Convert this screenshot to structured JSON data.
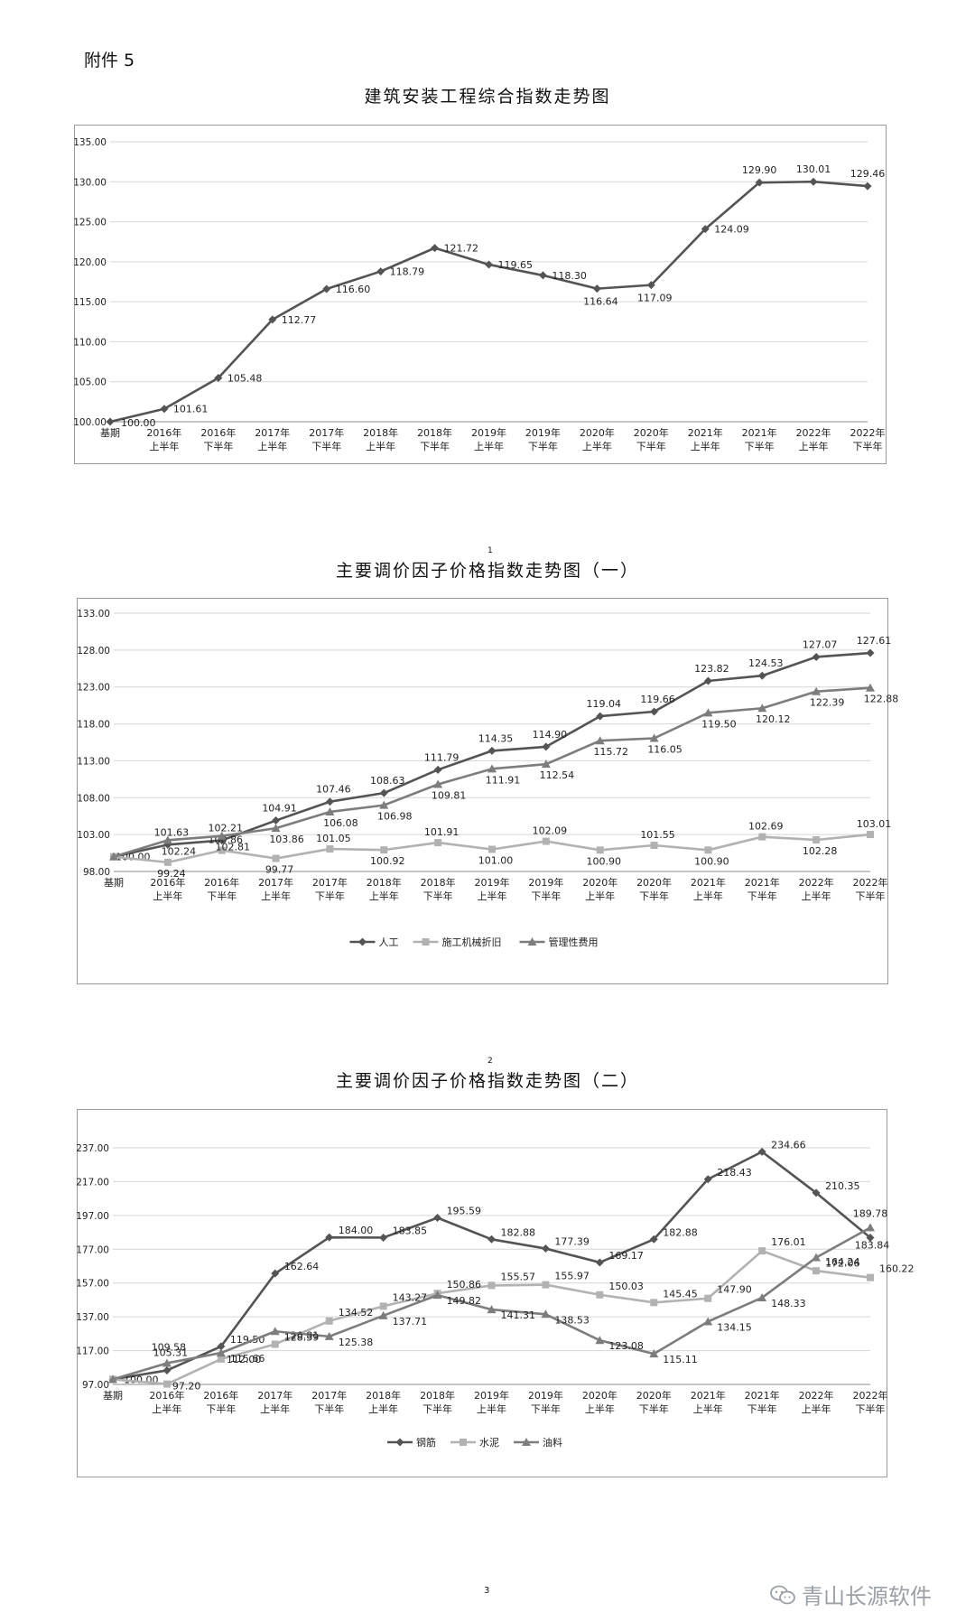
{
  "header": {
    "attachment": "附件 5"
  },
  "page_number": "3",
  "watermark": {
    "text": "青山长源软件",
    "icon": "wechat-icon"
  },
  "colors": {
    "dark": "#545454",
    "light": "#b2b2b2",
    "mid": "#7d7d7d",
    "grid": "#d6d6d6",
    "border": "#9a9a9a"
  },
  "chart_data": [
    {
      "type": "line",
      "title": "建筑安装工程综合指数走势图",
      "title_mark": "",
      "categories": [
        [
          "基期",
          ""
        ],
        [
          "2016年",
          "上半年"
        ],
        [
          "2016年",
          "下半年"
        ],
        [
          "2017年",
          "上半年"
        ],
        [
          "2017年",
          "下半年"
        ],
        [
          "2018年",
          "上半年"
        ],
        [
          "2018年",
          "下半年"
        ],
        [
          "2019年",
          "上半年"
        ],
        [
          "2019年",
          "下半年"
        ],
        [
          "2020年",
          "上半年"
        ],
        [
          "2020年",
          "下半年"
        ],
        [
          "2021年",
          "上半年"
        ],
        [
          "2021年",
          "下半年"
        ],
        [
          "2022年",
          "上半年"
        ],
        [
          "2022年",
          "下半年"
        ]
      ],
      "ylim": [
        100,
        135
      ],
      "yticks": [
        "100.00",
        "105.00",
        "110.00",
        "115.00",
        "120.00",
        "125.00",
        "130.00",
        "135.00"
      ],
      "grid": true,
      "legend": false,
      "series": [
        {
          "name": "",
          "marker": "diamond",
          "color": "#545454",
          "values": [
            100.0,
            101.61,
            105.48,
            112.77,
            116.6,
            118.79,
            121.72,
            119.65,
            118.3,
            116.64,
            117.09,
            124.09,
            129.9,
            130.01,
            129.46
          ],
          "labels": [
            "100.00",
            "101.61",
            "105.48",
            "112.77",
            "116.60",
            "118.79",
            "121.72",
            "119.65",
            "118.30",
            "116.64",
            "117.09",
            "124.09",
            "129.90",
            "130.01",
            "129.46"
          ]
        }
      ]
    },
    {
      "type": "line",
      "title": "主要调价因子价格指数走势图（一）",
      "title_mark": "1",
      "categories": [
        [
          "基期",
          ""
        ],
        [
          "2016年",
          "上半年"
        ],
        [
          "2016年",
          "下半年"
        ],
        [
          "2017年",
          "上半年"
        ],
        [
          "2017年",
          "下半年"
        ],
        [
          "2018年",
          "上半年"
        ],
        [
          "2018年",
          "下半年"
        ],
        [
          "2019年",
          "上半年"
        ],
        [
          "2019年",
          "下半年"
        ],
        [
          "2020年",
          "上半年"
        ],
        [
          "2020年",
          "下半年"
        ],
        [
          "2021年",
          "上半年"
        ],
        [
          "2021年",
          "下半年"
        ],
        [
          "2022年",
          "上半年"
        ],
        [
          "2022年",
          "下半年"
        ]
      ],
      "ylim": [
        98,
        133
      ],
      "yticks": [
        "98.00",
        "103.00",
        "108.00",
        "113.00",
        "118.00",
        "123.00",
        "128.00",
        "133.00"
      ],
      "grid": true,
      "legend": "bottom",
      "series": [
        {
          "name": "人工",
          "marker": "diamond",
          "color": "#545454",
          "values": [
            100.0,
            101.63,
            102.21,
            104.91,
            107.46,
            108.63,
            111.79,
            114.35,
            114.9,
            119.04,
            119.66,
            123.82,
            124.53,
            127.07,
            127.61
          ],
          "labels": [
            "100.00",
            "101.63",
            "102.21",
            "104.91",
            "107.46",
            "108.63",
            "111.79",
            "114.35",
            "114.90",
            "119.04",
            "119.66",
            "123.82",
            "124.53",
            "127.07",
            "127.61"
          ]
        },
        {
          "name": "施工机械折旧",
          "marker": "square",
          "color": "#b2b2b2",
          "values": [
            100.0,
            99.24,
            100.86,
            99.77,
            101.05,
            100.92,
            101.91,
            101.0,
            102.09,
            100.9,
            101.55,
            100.9,
            102.69,
            102.28,
            103.01
          ],
          "labels": [
            "",
            "99.24",
            "100.86",
            "99.77",
            "101.05",
            "100.92",
            "101.91",
            "101.00",
            "102.09",
            "100.90",
            "101.55",
            "100.90",
            "102.69",
            "102.28",
            "103.01"
          ]
        },
        {
          "name": "管理性费用",
          "marker": "triangle",
          "color": "#7d7d7d",
          "values": [
            100.0,
            102.24,
            102.81,
            103.86,
            106.08,
            106.98,
            109.81,
            111.91,
            112.54,
            115.72,
            116.05,
            119.5,
            120.12,
            122.39,
            122.88
          ],
          "labels": [
            "",
            "102.24",
            "102.81",
            "103.86",
            "106.08",
            "106.98",
            "109.81",
            "111.91",
            "112.54",
            "115.72",
            "116.05",
            "119.50",
            "120.12",
            "122.39",
            "122.88"
          ]
        }
      ]
    },
    {
      "type": "line",
      "title": "主要调价因子价格指数走势图（二）",
      "title_mark": "2",
      "categories": [
        [
          "基期",
          ""
        ],
        [
          "2016年",
          "上半年"
        ],
        [
          "2016年",
          "下半年"
        ],
        [
          "2017年",
          "上半年"
        ],
        [
          "2017年",
          "下半年"
        ],
        [
          "2018年",
          "上半年"
        ],
        [
          "2018年",
          "下半年"
        ],
        [
          "2019年",
          "上半年"
        ],
        [
          "2019年",
          "下半年"
        ],
        [
          "2020年",
          "上半年"
        ],
        [
          "2020年",
          "下半年"
        ],
        [
          "2021年",
          "上半年"
        ],
        [
          "2021年",
          "下半年"
        ],
        [
          "2022年",
          "上半年"
        ],
        [
          "2022年",
          "下半年"
        ]
      ],
      "ylim": [
        97,
        237
      ],
      "yticks": [
        "97.00",
        "117.00",
        "137.00",
        "157.00",
        "177.00",
        "197.00",
        "217.00",
        "237.00"
      ],
      "grid": true,
      "legend": "bottom",
      "series": [
        {
          "name": "钢筋",
          "marker": "diamond",
          "color": "#545454",
          "values": [
            100.0,
            105.31,
            119.5,
            162.64,
            184.0,
            183.85,
            195.59,
            182.88,
            177.39,
            169.17,
            182.88,
            218.43,
            234.66,
            210.35,
            183.84
          ],
          "labels": [
            "100.00",
            "105.31",
            "119.50",
            "162.64",
            "184.00",
            "183.85",
            "195.59",
            "182.88",
            "177.39",
            "169.17",
            "182.88",
            "218.43",
            "234.66",
            "210.35",
            "183.84"
          ]
        },
        {
          "name": "水泥",
          "marker": "square",
          "color": "#b2b2b2",
          "values": [
            100.0,
            97.2,
            112.0,
            120.81,
            134.52,
            143.27,
            150.86,
            155.57,
            155.97,
            150.03,
            145.45,
            147.9,
            176.01,
            164.24,
            160.22
          ],
          "labels": [
            "",
            "97.20",
            "112.00",
            "120.81",
            "134.52",
            "143.27",
            "150.86",
            "155.57",
            "155.97",
            "150.03",
            "145.45",
            "147.90",
            "176.01",
            "164.24",
            "160.22"
          ]
        },
        {
          "name": "油料",
          "marker": "triangle",
          "color": "#7d7d7d",
          "values": [
            100.0,
            109.58,
            115.66,
            128.39,
            125.38,
            137.71,
            149.82,
            141.31,
            138.53,
            123.08,
            115.11,
            134.15,
            148.33,
            172.06,
            189.78
          ],
          "labels": [
            "",
            "109.58",
            "115.66",
            "128.39",
            "125.38",
            "137.71",
            "149.82",
            "141.31",
            "138.53",
            "123.08",
            "115.11",
            "134.15",
            "148.33",
            "172.06",
            "189.78"
          ]
        }
      ]
    }
  ]
}
